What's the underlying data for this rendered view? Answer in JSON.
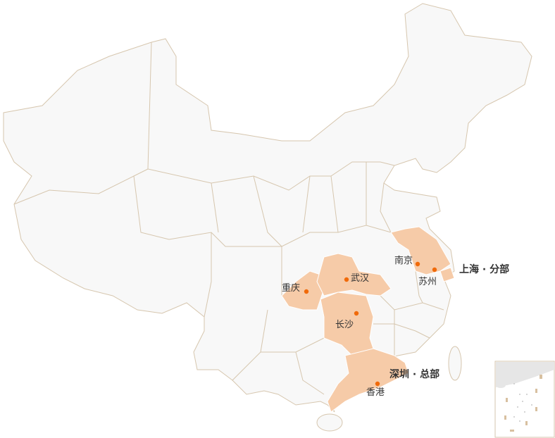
{
  "colors": {
    "land": "#f8f8f8",
    "border": "#d6c6ae",
    "highlight": "#f6cba8",
    "city_dot": "#f06a0a",
    "text": "#333333"
  },
  "highlighted_regions": [
    "chongqing",
    "hubei",
    "hunan",
    "guangdong",
    "jiangsu",
    "shanghai"
  ],
  "cities": [
    {
      "id": "nanjing",
      "label": "南京"
    },
    {
      "id": "suzhou",
      "label": "苏州"
    },
    {
      "id": "wuhan",
      "label": "武汉"
    },
    {
      "id": "chongqing",
      "label": "重庆"
    },
    {
      "id": "changsha",
      "label": "长沙"
    },
    {
      "id": "hongkong",
      "label": "香港"
    }
  ],
  "offices": [
    {
      "id": "shanghai",
      "label": "上海 · 分部"
    },
    {
      "id": "shenzhen",
      "label": "深圳 · 总部"
    }
  ]
}
